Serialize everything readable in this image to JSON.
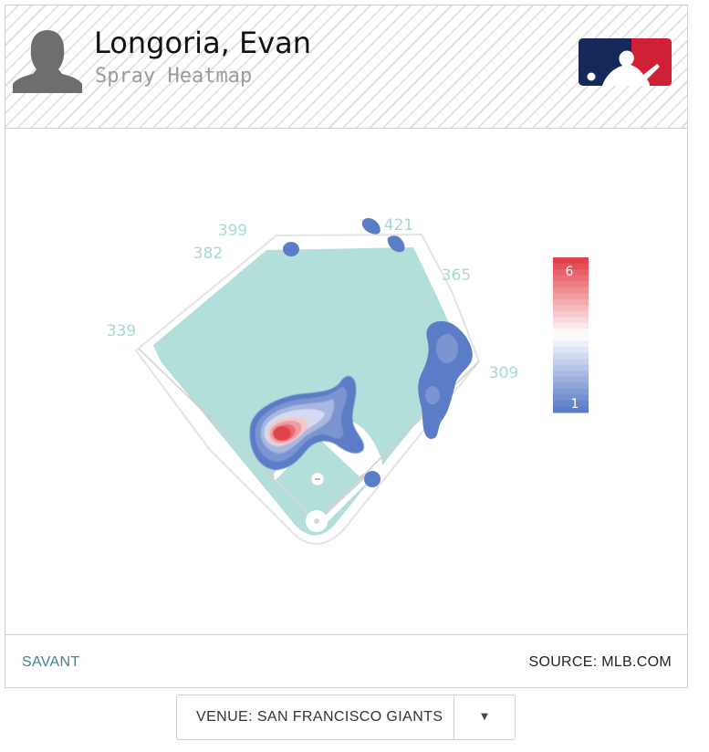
{
  "header": {
    "player_name": "Longoria, Evan",
    "subtitle": "Spray Heatmap",
    "avatar_icon": "player-silhouette-icon",
    "logo_icon": "mlb-logo-icon"
  },
  "chart_data": {
    "type": "heatmap",
    "title": "Spray Heatmap",
    "field_distances": [
      {
        "label": "339"
      },
      {
        "label": "382"
      },
      {
        "label": "399"
      },
      {
        "label": "421"
      },
      {
        "label": "365"
      },
      {
        "label": "309"
      }
    ],
    "legend": {
      "min": 1,
      "max": 6,
      "min_label": "1",
      "max_label": "6",
      "low_color": "#5b7cc6",
      "high_color": "#e2424b",
      "placement": "right"
    },
    "hotspots": [
      {
        "zone": "shortstop / left-center infield",
        "intensity": 6
      },
      {
        "zone": "right field line",
        "intensity": 2
      },
      {
        "zone": "deep center field",
        "intensity": 1
      },
      {
        "zone": "left-center field wall",
        "intensity": 1
      },
      {
        "zone": "first base",
        "intensity": 1
      }
    ],
    "colors": {
      "field": "#b3dfdb",
      "infield_dirt": "#ffffff",
      "label": "#a8d8d4"
    }
  },
  "footer": {
    "savant_label": "SAVANT",
    "source_label": "SOURCE: MLB.COM"
  },
  "venue": {
    "selected": "VENUE: SAN FRANCISCO GIANTS"
  }
}
